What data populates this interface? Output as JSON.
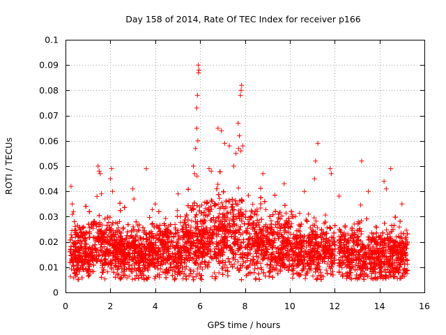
{
  "chart_data": {
    "type": "scatter",
    "title": "Day 158 of 2014, Rate Of TEC Index for receiver p166",
    "xlabel": "GPS time / hours",
    "ylabel": "ROTI / TECUs",
    "xlim": [
      0,
      16
    ],
    "ylim": [
      0,
      0.1
    ],
    "x_ticks": [
      0,
      2,
      4,
      6,
      8,
      10,
      12,
      14,
      16
    ],
    "y_ticks": [
      0,
      0.01,
      0.02,
      0.03,
      0.04,
      0.05,
      0.06,
      0.07,
      0.08,
      0.09,
      0.1
    ],
    "x_tick_labels": [
      "0",
      "2",
      "4",
      "6",
      "8",
      "10",
      "12",
      "14",
      "16"
    ],
    "y_tick_labels": [
      "0",
      "0.01",
      "0.02",
      "0.03",
      "0.04",
      "0.05",
      "0.06",
      "0.07",
      "0.08",
      "0.09",
      "0.1"
    ],
    "grid": true,
    "marker": "+",
    "series": [
      {
        "name": "ROTI",
        "color": "#ff0000",
        "points": [
          [
            0.25,
            0.042
          ],
          [
            0.3,
            0.035
          ],
          [
            0.35,
            0.032
          ],
          [
            0.4,
            0.028
          ],
          [
            1.45,
            0.05
          ],
          [
            1.5,
            0.048
          ],
          [
            1.55,
            0.047
          ],
          [
            1.6,
            0.039
          ],
          [
            1.4,
            0.038
          ],
          [
            2.05,
            0.049
          ],
          [
            2.0,
            0.045
          ],
          [
            2.1,
            0.04
          ],
          [
            3.0,
            0.041
          ],
          [
            3.05,
            0.037
          ],
          [
            3.6,
            0.049
          ],
          [
            4.0,
            0.035
          ],
          [
            5.7,
            0.05
          ],
          [
            5.75,
            0.047
          ],
          [
            5.8,
            0.057
          ],
          [
            5.85,
            0.065
          ],
          [
            5.9,
            0.06
          ],
          [
            5.85,
            0.073
          ],
          [
            5.88,
            0.078
          ],
          [
            5.92,
            0.09
          ],
          [
            5.95,
            0.088
          ],
          [
            5.93,
            0.087
          ],
          [
            6.4,
            0.049
          ],
          [
            6.5,
            0.048
          ],
          [
            6.8,
            0.065
          ],
          [
            6.95,
            0.064
          ],
          [
            7.1,
            0.059
          ],
          [
            7.3,
            0.058
          ],
          [
            7.5,
            0.05
          ],
          [
            7.6,
            0.055
          ],
          [
            7.7,
            0.067
          ],
          [
            7.75,
            0.062
          ],
          [
            7.8,
            0.078
          ],
          [
            7.85,
            0.082
          ],
          [
            7.83,
            0.08
          ],
          [
            7.9,
            0.058
          ],
          [
            7.82,
            0.056
          ],
          [
            8.8,
            0.047
          ],
          [
            9.75,
            0.043
          ],
          [
            10.65,
            0.04
          ],
          [
            11.15,
            0.052
          ],
          [
            11.25,
            0.059
          ],
          [
            11.1,
            0.045
          ],
          [
            11.8,
            0.049
          ],
          [
            11.85,
            0.047
          ],
          [
            13.2,
            0.052
          ],
          [
            13.5,
            0.04
          ],
          [
            14.2,
            0.044
          ],
          [
            14.5,
            0.049
          ],
          [
            14.3,
            0.041
          ],
          [
            15.0,
            0.035
          ]
        ],
        "dense_profile": {
          "x_range": [
            0.2,
            15.25
          ],
          "gaps": [
            [
              12.02,
              12.18
            ]
          ],
          "points_per_hour": 560,
          "floor": 0.005,
          "baseline": [
            [
              0.2,
              0.016
            ],
            [
              1.0,
              0.016
            ],
            [
              1.5,
              0.019
            ],
            [
              2.0,
              0.017
            ],
            [
              3.0,
              0.016
            ],
            [
              4.0,
              0.016
            ],
            [
              5.0,
              0.016
            ],
            [
              5.6,
              0.018
            ],
            [
              6.0,
              0.02
            ],
            [
              6.5,
              0.022
            ],
            [
              7.0,
              0.022
            ],
            [
              7.8,
              0.022
            ],
            [
              8.5,
              0.019
            ],
            [
              9.0,
              0.018
            ],
            [
              10.0,
              0.017
            ],
            [
              11.0,
              0.017
            ],
            [
              12.0,
              0.016
            ],
            [
              13.0,
              0.015
            ],
            [
              14.0,
              0.014
            ],
            [
              15.25,
              0.014
            ]
          ],
          "spread": [
            [
              0.2,
              0.011
            ],
            [
              1.0,
              0.011
            ],
            [
              2.0,
              0.012
            ],
            [
              3.0,
              0.011
            ],
            [
              4.0,
              0.011
            ],
            [
              5.0,
              0.012
            ],
            [
              6.0,
              0.014
            ],
            [
              6.5,
              0.016
            ],
            [
              7.0,
              0.016
            ],
            [
              7.8,
              0.016
            ],
            [
              8.5,
              0.013
            ],
            [
              9.0,
              0.012
            ],
            [
              11.0,
              0.012
            ],
            [
              12.0,
              0.011
            ],
            [
              13.0,
              0.011
            ],
            [
              15.25,
              0.011
            ]
          ]
        }
      }
    ]
  }
}
